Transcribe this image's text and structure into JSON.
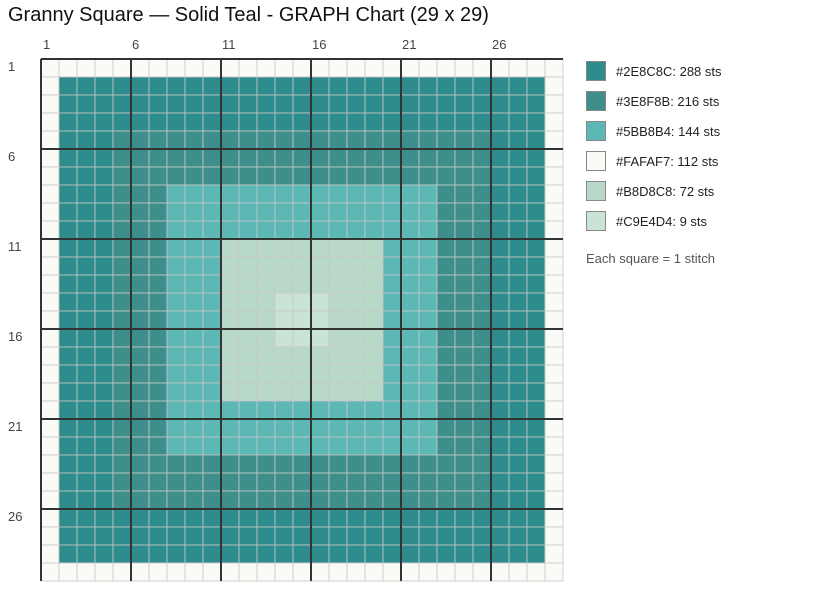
{
  "title": "Granny Square — Solid Teal - GRAPH Chart (29 x 29)",
  "grid": {
    "cols": 29,
    "rows": 29,
    "col_labels": [
      "1",
      "6",
      "11",
      "16",
      "21",
      "26"
    ],
    "row_labels": [
      "1",
      "6",
      "11",
      "16",
      "21",
      "26"
    ],
    "rings": [
      {
        "from": 1,
        "to": 29,
        "color": "#FAFAF7"
      },
      {
        "from": 2,
        "to": 28,
        "color": "#2E8C8C"
      },
      {
        "from": 5,
        "to": 25,
        "color": "#3E8F8B"
      },
      {
        "from": 8,
        "to": 22,
        "color": "#5BB8B4"
      },
      {
        "from": 11,
        "to": 19,
        "color": "#B8D8C8"
      },
      {
        "from": 14,
        "to": 16,
        "color": "#C9E4D4"
      }
    ]
  },
  "legend": [
    {
      "color": "#2E8C8C",
      "label": "#2E8C8C: 288 sts"
    },
    {
      "color": "#3E8F8B",
      "label": "#3E8F8B: 216 sts"
    },
    {
      "color": "#5BB8B4",
      "label": "#5BB8B4: 144 sts"
    },
    {
      "color": "#FAFAF7",
      "label": "#FAFAF7: 112 sts"
    },
    {
      "color": "#B8D8C8",
      "label": "#B8D8C8: 72 sts"
    },
    {
      "color": "#C9E4D4",
      "label": "#C9E4D4: 9 sts"
    }
  ],
  "note": "Each square = 1 stitch"
}
